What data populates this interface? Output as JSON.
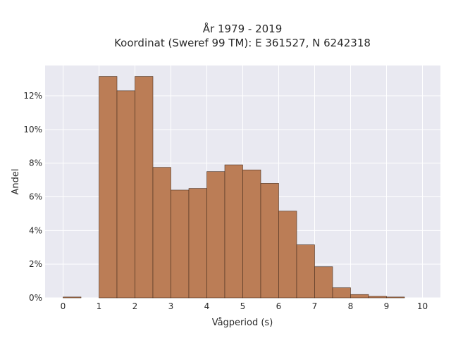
{
  "chart_data": {
    "type": "bar",
    "title_lines": [
      "År 1979 - 2019",
      "Koordinat (Sweref 99 TM): E 361527, N 6242318"
    ],
    "xlabel": "Vågperiod (s)",
    "ylabel": "Andel",
    "bin_width": 0.5,
    "bins_start": [
      0,
      1,
      1.5,
      2,
      2.5,
      3,
      3.5,
      4,
      4.5,
      5,
      5.5,
      6,
      6.5,
      7,
      7.5,
      8,
      8.5,
      9
    ],
    "values": [
      0.05,
      13.15,
      12.3,
      13.15,
      7.75,
      6.4,
      6.5,
      7.5,
      7.9,
      7.6,
      6.8,
      5.15,
      3.15,
      1.85,
      0.6,
      0.2,
      0.1,
      0.05
    ],
    "x_range": [
      -0.5,
      10.5
    ],
    "y_range": [
      0,
      13.8
    ],
    "x_ticks": [
      "0",
      "1",
      "2",
      "3",
      "4",
      "5",
      "6",
      "7",
      "8",
      "9",
      "10"
    ],
    "y_ticks": [
      "0%",
      "2%",
      "4%",
      "6%",
      "8%",
      "10%",
      "12%"
    ],
    "grid": true,
    "colors": {
      "bar": "#bb7d56",
      "bar_edge": "#4a3020",
      "plot_bg": "#e9e9f1",
      "grid": "#ffffff"
    }
  }
}
